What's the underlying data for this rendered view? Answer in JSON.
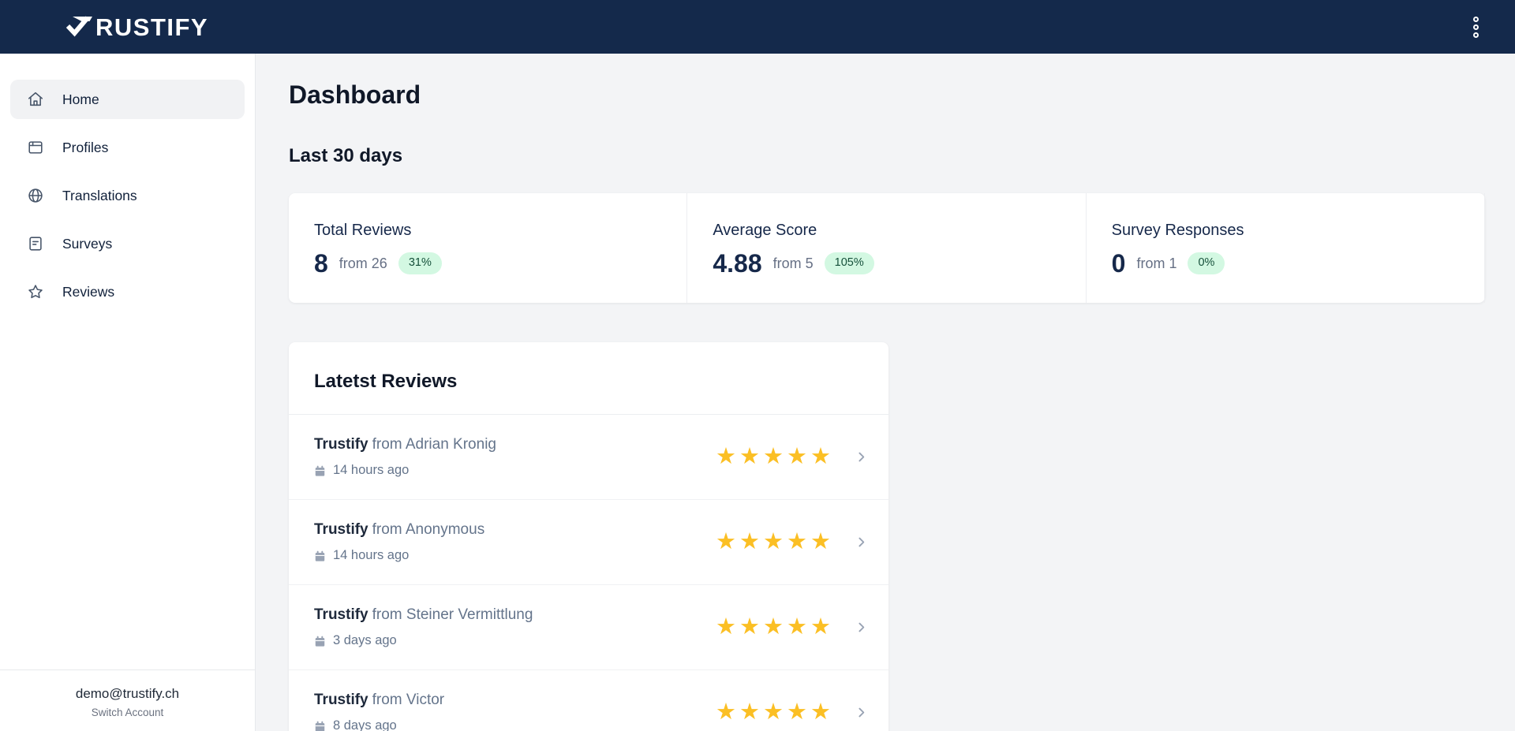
{
  "topbar": {
    "logo_text": "RUSTIFY",
    "menu_icon": "kebab-menu-icon"
  },
  "sidebar": {
    "items": [
      {
        "label": "Home",
        "icon": "home",
        "active": true
      },
      {
        "label": "Profiles",
        "icon": "profiles",
        "active": false
      },
      {
        "label": "Translations",
        "icon": "translations",
        "active": false
      },
      {
        "label": "Surveys",
        "icon": "surveys",
        "active": false
      },
      {
        "label": "Reviews",
        "icon": "reviews",
        "active": false
      }
    ],
    "account": {
      "email": "demo@trustify.ch",
      "switch_label": "Switch Account"
    }
  },
  "main": {
    "title": "Dashboard",
    "subtitle": "Last 30 days",
    "stats": [
      {
        "label": "Total Reviews",
        "value": "8",
        "from": "from 26",
        "badge": "31%"
      },
      {
        "label": "Average Score",
        "value": "4.88",
        "from": "from 5",
        "badge": "105%"
      },
      {
        "label": "Survey Responses",
        "value": "0",
        "from": "from 1",
        "badge": "0%"
      }
    ],
    "reviews": {
      "title": "Latetst Reviews",
      "items": [
        {
          "source": "Trustify",
          "from": "from Adrian Kronig",
          "time": "14 hours ago",
          "rating": 5
        },
        {
          "source": "Trustify",
          "from": "from Anonymous",
          "time": "14 hours ago",
          "rating": 5
        },
        {
          "source": "Trustify",
          "from": "from Steiner Vermittlung",
          "time": "3 days ago",
          "rating": 5
        },
        {
          "source": "Trustify",
          "from": "from Victor",
          "time": "8 days ago",
          "rating": 5
        }
      ]
    }
  },
  "colors": {
    "topbar_bg": "#14294b",
    "page_bg": "#f3f4f6",
    "badge_bg": "#d3f8e2",
    "badge_text": "#15503a",
    "star": "#fbbf24",
    "accent_navy": "#16284a"
  }
}
